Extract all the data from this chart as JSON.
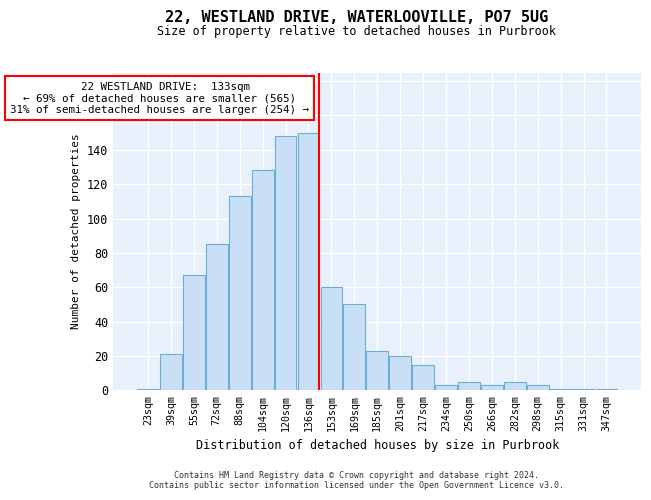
{
  "title_line1": "22, WESTLAND DRIVE, WATERLOOVILLE, PO7 5UG",
  "title_line2": "Size of property relative to detached houses in Purbrook",
  "xlabel": "Distribution of detached houses by size in Purbrook",
  "ylabel": "Number of detached properties",
  "categories": [
    "23sqm",
    "39sqm",
    "55sqm",
    "72sqm",
    "88sqm",
    "104sqm",
    "120sqm",
    "136sqm",
    "153sqm",
    "169sqm",
    "185sqm",
    "201sqm",
    "217sqm",
    "234sqm",
    "250sqm",
    "266sqm",
    "282sqm",
    "298sqm",
    "315sqm",
    "331sqm",
    "347sqm"
  ],
  "values": [
    1,
    21,
    67,
    85,
    113,
    128,
    148,
    150,
    60,
    50,
    23,
    20,
    15,
    3,
    5,
    3,
    5,
    3,
    1,
    1,
    1
  ],
  "bar_color": "#c9dff5",
  "bar_edge_color": "#6aaed6",
  "red_line_index": 7,
  "annotation_line1": "  22 WESTLAND DRIVE:  133sqm",
  "annotation_line2": "← 69% of detached houses are smaller (565)",
  "annotation_line3": "31% of semi-detached houses are larger (254) →",
  "ylim": [
    0,
    185
  ],
  "yticks": [
    0,
    20,
    40,
    60,
    80,
    100,
    120,
    140,
    160,
    180
  ],
  "bg_color": "#e8f0fb",
  "grid_color": "#ffffff",
  "footer_line1": "Contains HM Land Registry data © Crown copyright and database right 2024.",
  "footer_line2": "Contains public sector information licensed under the Open Government Licence v3.0."
}
